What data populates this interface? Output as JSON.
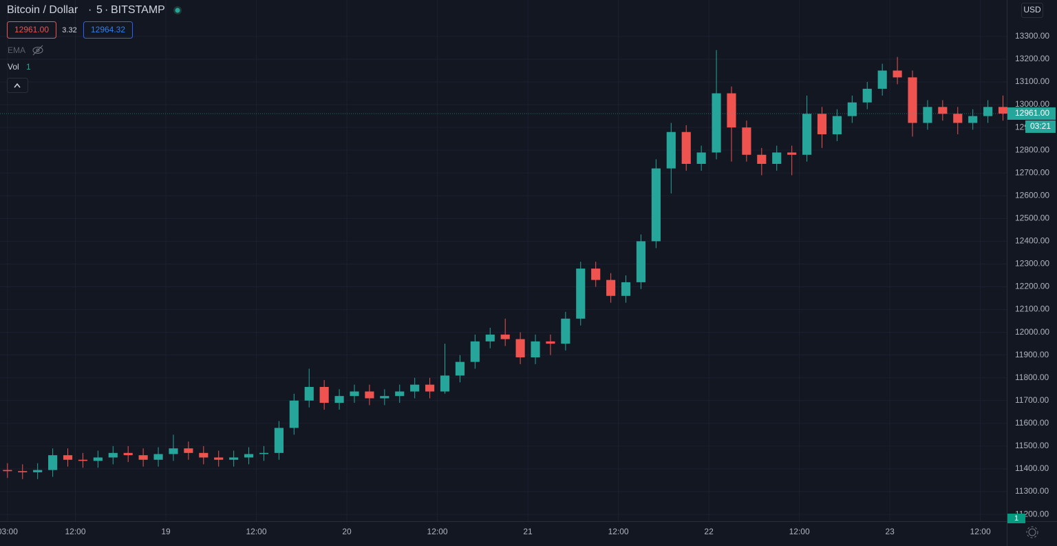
{
  "header": {
    "symbol": "Bitcoin / Dollar",
    "interval": "5",
    "exchange": "BITSTAMP",
    "sell": "12961.00",
    "spread": "3.32",
    "buy": "12964.32",
    "indicators": [
      "EMA",
      "Vol"
    ],
    "vol_value": "1",
    "currency": "USD",
    "countdown": "03:21"
  },
  "chart_data": {
    "type": "candlestick",
    "up_color": "#26a69a",
    "down_color": "#ef5350",
    "grid": true,
    "x": [
      3,
      5,
      7,
      9,
      11,
      13,
      15,
      17,
      19,
      21,
      23,
      25,
      27,
      29,
      31,
      33,
      35,
      37,
      39,
      41,
      43,
      45,
      47,
      49,
      51,
      53,
      55,
      57,
      59,
      61,
      63,
      65,
      67,
      69,
      71,
      73,
      75,
      77,
      79,
      81,
      83,
      85,
      87,
      89,
      91,
      93,
      95,
      97,
      99,
      101,
      103,
      105,
      107,
      109,
      111,
      113,
      115,
      117,
      119,
      121,
      123,
      125,
      127,
      129,
      131,
      133,
      135
    ],
    "open": [
      11395,
      11390,
      11385,
      11395,
      11460,
      11440,
      11435,
      11450,
      11470,
      11460,
      11440,
      11465,
      11490,
      11470,
      11450,
      11440,
      11450,
      11465,
      11470,
      11580,
      11700,
      11760,
      11690,
      11720,
      11740,
      11710,
      11720,
      11740,
      11770,
      11740,
      11810,
      11870,
      11960,
      11990,
      11970,
      11890,
      11960,
      11950,
      12060,
      12280,
      12230,
      12160,
      12220,
      12400,
      12720,
      12880,
      12740,
      12790,
      13050,
      12900,
      12780,
      12740,
      12790,
      12780,
      12960,
      12870,
      12950,
      13010,
      13070,
      13150,
      13120,
      12920,
      12990,
      12960,
      12920,
      12950,
      12990
    ],
    "high": [
      11425,
      11420,
      11425,
      11490,
      11490,
      11470,
      11480,
      11500,
      11500,
      11490,
      11495,
      11550,
      11520,
      11500,
      11480,
      11480,
      11495,
      11500,
      11610,
      11730,
      11840,
      11790,
      11750,
      11770,
      11770,
      11750,
      11770,
      11800,
      11800,
      11950,
      11900,
      11990,
      12020,
      12060,
      12000,
      11990,
      11990,
      12090,
      12310,
      12310,
      12260,
      12250,
      12430,
      12760,
      12920,
      12910,
      12820,
      13240,
      13080,
      12930,
      12810,
      12820,
      12820,
      13040,
      12990,
      12980,
      13040,
      13100,
      13180,
      13210,
      13150,
      13020,
      13020,
      12990,
      12980,
      13020,
      13040
    ],
    "low": [
      11360,
      11355,
      11355,
      11365,
      11410,
      11405,
      11405,
      11420,
      11430,
      11410,
      11410,
      11435,
      11440,
      11420,
      11410,
      11410,
      11420,
      11435,
      11440,
      11550,
      11670,
      11660,
      11660,
      11690,
      11680,
      11680,
      11690,
      11710,
      11710,
      11730,
      11780,
      11840,
      11930,
      11940,
      11860,
      11860,
      11900,
      11920,
      12030,
      12200,
      12130,
      12130,
      12190,
      12370,
      12610,
      12710,
      12710,
      12760,
      12750,
      12750,
      12690,
      12710,
      12690,
      12750,
      12810,
      12840,
      12920,
      12980,
      13040,
      13090,
      12860,
      12890,
      12930,
      12870,
      12890,
      12920,
      12930
    ],
    "close": [
      11390,
      11385,
      11395,
      11460,
      11440,
      11435,
      11450,
      11470,
      11460,
      11440,
      11465,
      11490,
      11470,
      11450,
      11440,
      11450,
      11465,
      11470,
      11580,
      11700,
      11760,
      11690,
      11720,
      11740,
      11710,
      11720,
      11740,
      11770,
      11740,
      11810,
      11870,
      11960,
      11990,
      11970,
      11890,
      11960,
      11950,
      12060,
      12280,
      12230,
      12160,
      12220,
      12400,
      12720,
      12880,
      12740,
      12790,
      13050,
      12900,
      12780,
      12740,
      12790,
      12780,
      12960,
      12870,
      12950,
      13010,
      13070,
      13150,
      13120,
      12920,
      12990,
      12960,
      12920,
      12950,
      12990,
      12961
    ],
    "last_price": {
      "value": 12961,
      "label": "12961.00"
    },
    "xlim": [
      2.01,
      135.5
    ],
    "xticks": [
      {
        "value": 3,
        "label": "03:00"
      },
      {
        "value": 12,
        "label": "12:00"
      },
      {
        "value": 24,
        "label": "19"
      },
      {
        "value": 36,
        "label": "12:00"
      },
      {
        "value": 48,
        "label": "20"
      },
      {
        "value": 60,
        "label": "12:00"
      },
      {
        "value": 72,
        "label": "21"
      },
      {
        "value": 84,
        "label": "12:00"
      },
      {
        "value": 96,
        "label": "22"
      },
      {
        "value": 108,
        "label": "12:00"
      },
      {
        "value": 120,
        "label": "23"
      },
      {
        "value": 132,
        "label": "12:00"
      }
    ],
    "ylim": [
      11170,
      13460
    ],
    "yticks": [
      {
        "value": 11200,
        "label": "11200.00"
      },
      {
        "value": 11300,
        "label": "11300.00"
      },
      {
        "value": 11400,
        "label": "11400.00"
      },
      {
        "value": 11500,
        "label": "11500.00"
      },
      {
        "value": 11600,
        "label": "11600.00"
      },
      {
        "value": 11700,
        "label": "11700.00"
      },
      {
        "value": 11800,
        "label": "11800.00"
      },
      {
        "value": 11900,
        "label": "11900.00"
      },
      {
        "value": 12000,
        "label": "12000.00"
      },
      {
        "value": 12100,
        "label": "12100.00"
      },
      {
        "value": 12200,
        "label": "12200.00"
      },
      {
        "value": 12300,
        "label": "12300.00"
      },
      {
        "value": 12400,
        "label": "12400.00"
      },
      {
        "value": 12500,
        "label": "12500.00"
      },
      {
        "value": 12600,
        "label": "12600.00"
      },
      {
        "value": 12700,
        "label": "12700.00"
      },
      {
        "value": 12800,
        "label": "12800.00"
      },
      {
        "value": 12900,
        "label": "12900.00"
      },
      {
        "value": 13000,
        "label": "13000.00"
      },
      {
        "value": 13100,
        "label": "13100.00"
      },
      {
        "value": 13200,
        "label": "13200.00"
      },
      {
        "value": 13300,
        "label": "13300.00"
      }
    ]
  }
}
